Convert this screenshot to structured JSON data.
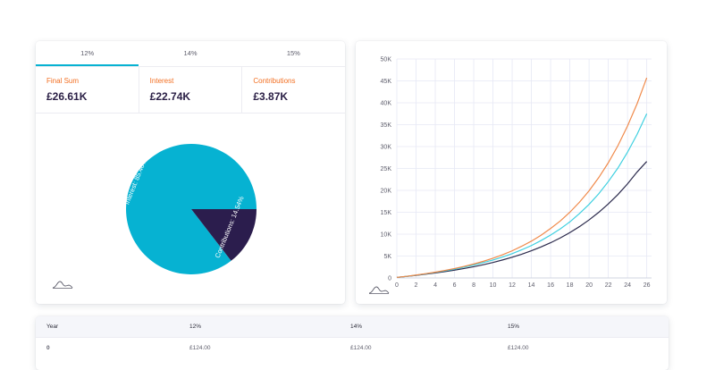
{
  "tabs": [
    {
      "label": "12%",
      "active": true
    },
    {
      "label": "14%",
      "active": false
    },
    {
      "label": "15%",
      "active": false
    }
  ],
  "stats": [
    {
      "label": "Final Sum",
      "value": "£26.61K"
    },
    {
      "label": "Interest",
      "value": "£22.74K"
    },
    {
      "label": "Contributions",
      "value": "£3.87K"
    }
  ],
  "colors": {
    "accent_tab": "#06b2d2",
    "stat_label": "#f26f22",
    "stat_value": "#2b2046",
    "interest": "#06b2d2",
    "contributions": "#2b1d4d",
    "line_15": "#f08a4b",
    "line_14": "#3fd0e0",
    "line_12": "#2b2a4c",
    "grid": "#e6e8f5"
  },
  "icons": {
    "pie_card_chart_icon": "area-chart-icon",
    "line_card_chart_icon": "area-chart-icon"
  },
  "chart_data": [
    {
      "type": "pie",
      "slices": [
        {
          "label": "Interest: 85.46%",
          "value": 85.46,
          "color": "#06b2d2"
        },
        {
          "label": "Contributions: 14.54%",
          "value": 14.54,
          "color": "#2b1d4d"
        }
      ]
    },
    {
      "type": "line",
      "x": [
        0,
        1,
        2,
        3,
        4,
        5,
        6,
        7,
        8,
        9,
        10,
        11,
        12,
        13,
        14,
        15,
        16,
        17,
        18,
        19,
        20,
        21,
        22,
        23,
        24,
        25,
        26
      ],
      "series": [
        {
          "color": "#f08a4b",
          "values": [
            124,
            365,
            660,
            980,
            1330,
            1720,
            2150,
            2640,
            3190,
            3800,
            4500,
            5300,
            6200,
            7250,
            8400,
            9750,
            11300,
            13000,
            15000,
            17300,
            19900,
            22900,
            26300,
            30200,
            34700,
            39800,
            45700
          ]
        },
        {
          "color": "#3fd0e0",
          "values": [
            124,
            360,
            640,
            940,
            1270,
            1630,
            2020,
            2460,
            2950,
            3500,
            4100,
            4790,
            5560,
            6430,
            7400,
            8530,
            9800,
            11200,
            12800,
            14700,
            16800,
            19200,
            22000,
            25100,
            28700,
            32800,
            37500
          ]
        },
        {
          "color": "#2b2a4c",
          "values": [
            124,
            340,
            590,
            850,
            1130,
            1440,
            1780,
            2150,
            2570,
            3030,
            3540,
            4110,
            4730,
            5430,
            6200,
            7070,
            8040,
            9130,
            10350,
            11720,
            13250,
            14970,
            16900,
            19050,
            21480,
            24200,
            26600
          ]
        }
      ],
      "xticks": [
        0,
        2,
        4,
        6,
        8,
        10,
        12,
        14,
        16,
        18,
        20,
        22,
        24,
        26
      ],
      "ytick_labels": [
        "0",
        "5K",
        "10K",
        "15K",
        "20K",
        "25K",
        "30K",
        "35K",
        "40K",
        "45K",
        "50K"
      ],
      "xlim": [
        0,
        26.5
      ],
      "ylim": [
        0,
        50000
      ],
      "grid": true
    }
  ],
  "table": {
    "headers": [
      "Year",
      "12%",
      "14%",
      "15%"
    ],
    "rows": [
      [
        "0",
        "£124.00",
        "£124.00",
        "£124.00"
      ]
    ]
  }
}
